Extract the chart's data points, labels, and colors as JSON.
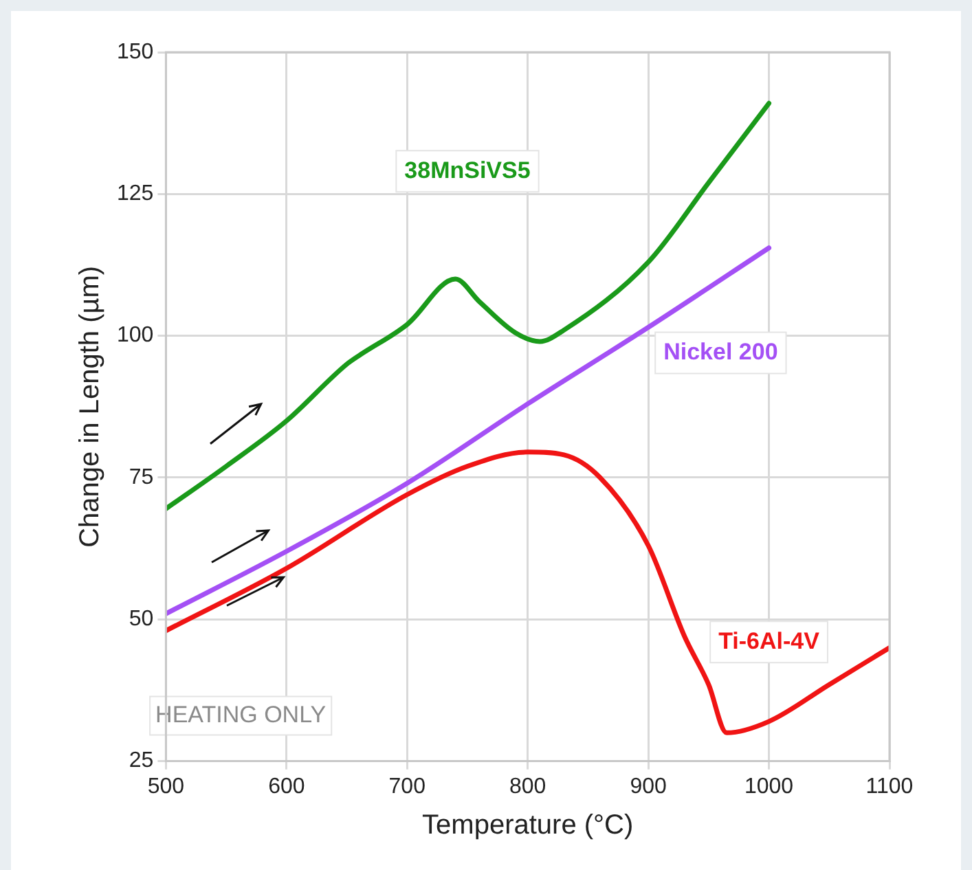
{
  "chart_data": {
    "type": "line",
    "xlabel": "Temperature (°C)",
    "ylabel": "Change in Length (µm)",
    "xlim": [
      500,
      1100
    ],
    "xticks": [
      500,
      600,
      700,
      800,
      900,
      1000,
      1100
    ],
    "ylim": [
      25,
      150
    ],
    "yticks": [
      25,
      50,
      75,
      100,
      125,
      150
    ],
    "grid": true,
    "legend": false,
    "marker": "none",
    "line_style": "solid",
    "series": [
      {
        "name": "38MnSiVS5",
        "color": "#1a9a1a",
        "x": [
          500,
          550,
          600,
          650,
          660,
          700,
          740,
          760,
          790,
          810,
          830,
          900,
          950,
          1000
        ],
        "values": [
          69.5,
          77,
          85,
          95,
          96.5,
          102,
          110,
          106,
          100.5,
          99,
          101,
          113,
          127,
          141
        ]
      },
      {
        "name": "Nickel 200",
        "color": "#a450f5",
        "x": [
          500,
          600,
          700,
          800,
          900,
          1000
        ],
        "values": [
          51,
          62,
          74,
          88,
          101.5,
          115.5
        ]
      },
      {
        "name": "Ti-6Al-4V",
        "color": "#f01414",
        "x": [
          500,
          600,
          700,
          750,
          800,
          830,
          860,
          900,
          930,
          950,
          965,
          1000,
          1050,
          1100
        ],
        "values": [
          48,
          59,
          72,
          77,
          79.5,
          79,
          75,
          63,
          47,
          38.5,
          30,
          32,
          38.5,
          45
        ]
      }
    ],
    "annotations": [
      "HEATING ONLY"
    ]
  }
}
